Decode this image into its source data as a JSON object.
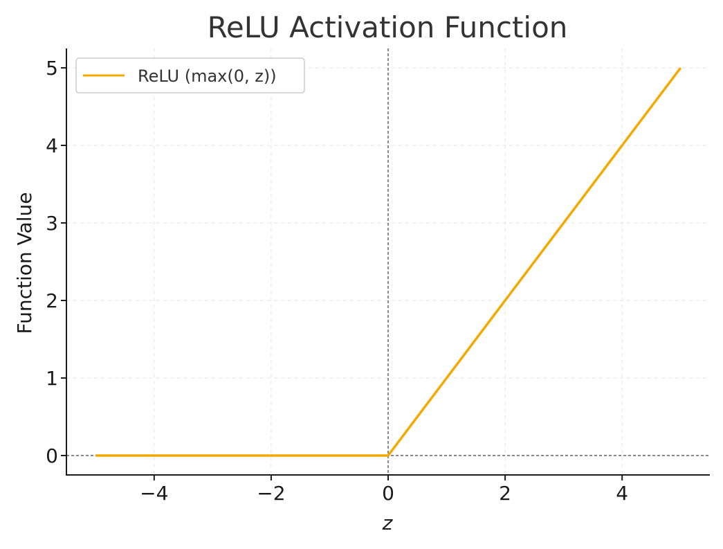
{
  "chart_data": {
    "type": "line",
    "title": "ReLU Activation Function",
    "xlabel": "z",
    "ylabel": "Function Value",
    "xlim": [
      -5.5,
      5.5
    ],
    "ylim": [
      -0.25,
      5.25
    ],
    "x_ticks": [
      -4,
      -2,
      0,
      2,
      4
    ],
    "x_tick_labels": [
      "−4",
      "−2",
      "0",
      "2",
      "4"
    ],
    "y_ticks": [
      0,
      1,
      2,
      3,
      4,
      5
    ],
    "y_tick_labels": [
      "0",
      "1",
      "2",
      "3",
      "4",
      "5"
    ],
    "grid": true,
    "reference_lines": {
      "x": 0,
      "y": 0
    },
    "legend": {
      "placement": "top-left"
    },
    "series": [
      {
        "name": "ReLU (max(0, z))",
        "color": "#f5a800",
        "x": [
          -5,
          0,
          5
        ],
        "y": [
          0,
          0,
          5
        ]
      }
    ]
  }
}
